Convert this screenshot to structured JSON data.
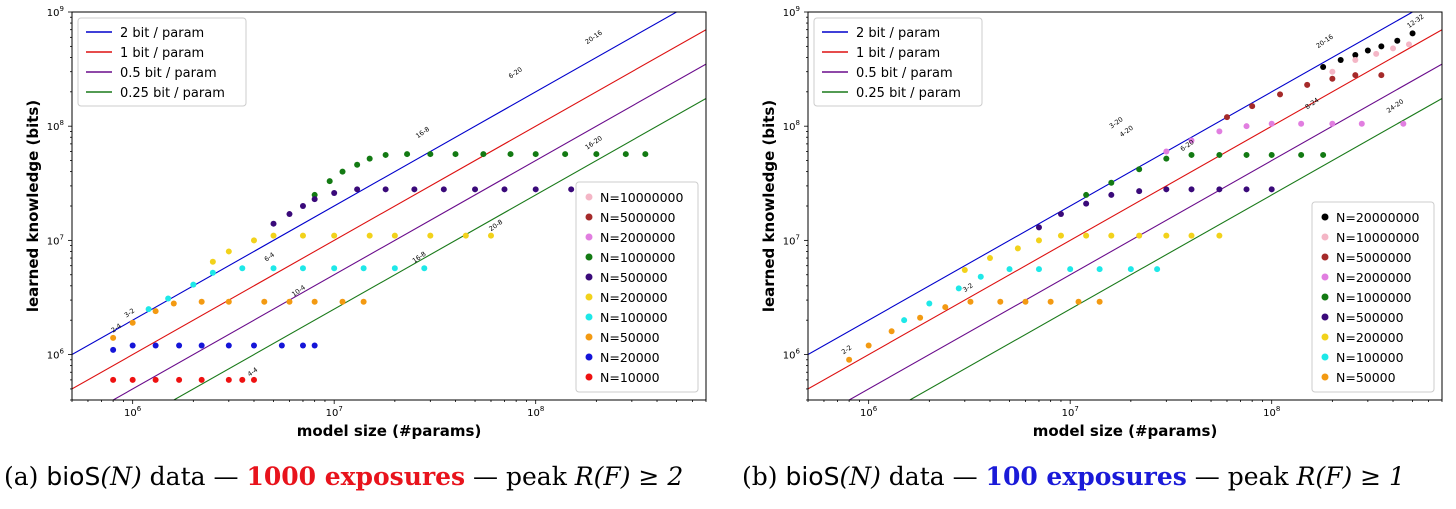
{
  "captions": [
    {
      "prefix": "(a) ",
      "name": "bioS",
      "arg": "(N)",
      "mid": " data — ",
      "highlight": "1000 exposures",
      "highlight_color": "#e8131c",
      "suffix": " — peak ",
      "peak": "R(F) ≥ 2"
    },
    {
      "prefix": "(b) ",
      "name": "bioS",
      "arg": "(N)",
      "mid": " data — ",
      "highlight": "100 exposures",
      "highlight_color": "#1a1ad8",
      "suffix": " — peak ",
      "peak": "R(F) ≥ 1"
    }
  ],
  "chart_data": [
    {
      "type": "scatter",
      "xscale": "log",
      "yscale": "log",
      "xlabel": "model size (#params)",
      "ylabel": "learned knowledge (bits)",
      "xlim": [
        500000,
        700000000
      ],
      "ylim": [
        400000,
        1000000000
      ],
      "xticks": [
        "10^6",
        "10^7",
        "10^8"
      ],
      "yticks": [
        "10^6",
        "10^7",
        "10^8",
        "10^9"
      ],
      "reference_lines": [
        {
          "name": "2 bit / param",
          "bits_per_param": 2,
          "color": "#0000cc"
        },
        {
          "name": "1 bit / param",
          "bits_per_param": 1,
          "color": "#dd1111"
        },
        {
          "name": "0.5 bit / param",
          "bits_per_param": 0.5,
          "color": "#6a0c8c"
        },
        {
          "name": "0.25 bit / param",
          "bits_per_param": 0.25,
          "color": "#1a7a1a"
        }
      ],
      "legend_lines_position": "top-left",
      "legend_series_position": "lower-right",
      "series": [
        {
          "name": "N=10000000",
          "color": "#f4b6c6",
          "points": []
        },
        {
          "name": "N=5000000",
          "color": "#a52a2a",
          "points": []
        },
        {
          "name": "N=2000000",
          "color": "#e17ee0",
          "points": []
        },
        {
          "name": "N=1000000",
          "color": "#137a13",
          "points": [
            [
              8000000,
              25000000
            ],
            [
              9500000,
              33000000
            ],
            [
              11000000,
              40000000
            ],
            [
              13000000,
              46000000
            ],
            [
              15000000,
              52000000
            ],
            [
              18000000,
              56000000
            ],
            [
              23000000,
              57000000
            ],
            [
              30000000,
              57000000
            ],
            [
              40000000,
              57000000
            ],
            [
              55000000,
              57000000
            ],
            [
              75000000,
              57000000
            ],
            [
              100000000,
              57000000
            ],
            [
              140000000,
              57000000
            ],
            [
              200000000,
              57000000
            ],
            [
              280000000,
              57000000
            ],
            [
              350000000,
              57000000
            ]
          ]
        },
        {
          "name": "N=500000",
          "color": "#3a0a7a",
          "points": [
            [
              5000000,
              14000000
            ],
            [
              6000000,
              17000000
            ],
            [
              7000000,
              20000000
            ],
            [
              8000000,
              23000000
            ],
            [
              10000000,
              26000000
            ],
            [
              13000000,
              28000000
            ],
            [
              18000000,
              28000000
            ],
            [
              25000000,
              28000000
            ],
            [
              35000000,
              28000000
            ],
            [
              50000000,
              28000000
            ],
            [
              70000000,
              28000000
            ],
            [
              100000000,
              28000000
            ],
            [
              150000000,
              28000000
            ]
          ]
        },
        {
          "name": "N=200000",
          "color": "#f2d21b",
          "points": [
            [
              2500000,
              6500000
            ],
            [
              3000000,
              8000000
            ],
            [
              4000000,
              10000000
            ],
            [
              5000000,
              11000000
            ],
            [
              7000000,
              11000000
            ],
            [
              10000000,
              11000000
            ],
            [
              15000000,
              11000000
            ],
            [
              20000000,
              11000000
            ],
            [
              30000000,
              11000000
            ],
            [
              45000000,
              11000000
            ],
            [
              60000000,
              11000000
            ]
          ]
        },
        {
          "name": "N=100000",
          "color": "#1ee8e8",
          "points": [
            [
              1200000,
              2500000
            ],
            [
              1500000,
              3100000
            ],
            [
              2000000,
              4100000
            ],
            [
              2500000,
              5200000
            ],
            [
              3500000,
              5700000
            ],
            [
              5000000,
              5700000
            ],
            [
              7000000,
              5700000
            ],
            [
              10000000,
              5700000
            ],
            [
              14000000,
              5700000
            ],
            [
              20000000,
              5700000
            ],
            [
              28000000,
              5700000
            ]
          ]
        },
        {
          "name": "N=50000",
          "color": "#f39a12",
          "points": [
            [
              800000,
              1400000
            ],
            [
              1000000,
              1900000
            ],
            [
              1300000,
              2400000
            ],
            [
              1600000,
              2800000
            ],
            [
              2200000,
              2900000
            ],
            [
              3000000,
              2900000
            ],
            [
              4500000,
              2900000
            ],
            [
              6000000,
              2900000
            ],
            [
              8000000,
              2900000
            ],
            [
              11000000,
              2900000
            ],
            [
              14000000,
              2900000
            ]
          ]
        },
        {
          "name": "N=20000",
          "color": "#1515d8",
          "points": [
            [
              800000,
              1100000
            ],
            [
              1000000,
              1200000
            ],
            [
              1300000,
              1200000
            ],
            [
              1700000,
              1200000
            ],
            [
              2200000,
              1200000
            ],
            [
              3000000,
              1200000
            ],
            [
              4000000,
              1200000
            ],
            [
              5500000,
              1200000
            ],
            [
              7000000,
              1200000
            ],
            [
              8000000,
              1200000
            ]
          ]
        },
        {
          "name": "N=10000",
          "color": "#ee1111",
          "points": [
            [
              800000,
              600000
            ],
            [
              1000000,
              600000
            ],
            [
              1300000,
              600000
            ],
            [
              1700000,
              600000
            ],
            [
              2200000,
              600000
            ],
            [
              3000000,
              600000
            ],
            [
              3500000,
              600000
            ],
            [
              4000000,
              600000
            ]
          ]
        }
      ],
      "annotations": [
        {
          "text": "20-16",
          "x": 180000000,
          "y": 520000000
        },
        {
          "text": "6-20",
          "x": 75000000,
          "y": 260000000
        },
        {
          "text": "16-8",
          "x": 26000000,
          "y": 78000000
        },
        {
          "text": "2-4",
          "x": 800000,
          "y": 1550000
        },
        {
          "text": "3-2",
          "x": 930000,
          "y": 2100000
        },
        {
          "text": "4-4",
          "x": 3800000,
          "y": 640000
        },
        {
          "text": "10-4",
          "x": 6300000,
          "y": 3200000
        },
        {
          "text": "6-4",
          "x": 4600000,
          "y": 6500000
        },
        {
          "text": "16-8",
          "x": 25000000,
          "y": 6300000
        },
        {
          "text": "20-8",
          "x": 60000000,
          "y": 12000000
        },
        {
          "text": "16-20",
          "x": 180000000,
          "y": 62000000
        }
      ]
    },
    {
      "type": "scatter",
      "xscale": "log",
      "yscale": "log",
      "xlabel": "model size (#params)",
      "ylabel": "learned knowledge (bits)",
      "xlim": [
        500000,
        700000000
      ],
      "ylim": [
        400000,
        1000000000
      ],
      "xticks": [
        "10^6",
        "10^7",
        "10^8"
      ],
      "yticks": [
        "10^6",
        "10^7",
        "10^8",
        "10^9"
      ],
      "reference_lines": [
        {
          "name": "2 bit / param",
          "bits_per_param": 2,
          "color": "#0000cc"
        },
        {
          "name": "1 bit / param",
          "bits_per_param": 1,
          "color": "#dd1111"
        },
        {
          "name": "0.5 bit / param",
          "bits_per_param": 0.5,
          "color": "#6a0c8c"
        },
        {
          "name": "0.25 bit / param",
          "bits_per_param": 0.25,
          "color": "#1a7a1a"
        }
      ],
      "legend_lines_position": "top-left",
      "legend_series_position": "lower-right",
      "series": [
        {
          "name": "N=20000000",
          "color": "#000000",
          "points": [
            [
              180000000,
              330000000
            ],
            [
              220000000,
              380000000
            ],
            [
              260000000,
              420000000
            ],
            [
              300000000,
              460000000
            ],
            [
              350000000,
              500000000
            ],
            [
              420000000,
              560000000
            ],
            [
              500000000,
              650000000
            ]
          ]
        },
        {
          "name": "N=10000000",
          "color": "#f4b6c6",
          "points": [
            [
              150000000,
              230000000
            ],
            [
              200000000,
              300000000
            ],
            [
              260000000,
              380000000
            ],
            [
              330000000,
              430000000
            ],
            [
              400000000,
              480000000
            ],
            [
              480000000,
              520000000
            ]
          ]
        },
        {
          "name": "N=5000000",
          "color": "#a52a2a",
          "points": [
            [
              60000000,
              120000000
            ],
            [
              80000000,
              150000000
            ],
            [
              110000000,
              190000000
            ],
            [
              150000000,
              230000000
            ],
            [
              200000000,
              260000000
            ],
            [
              260000000,
              280000000
            ],
            [
              350000000,
              280000000
            ]
          ]
        },
        {
          "name": "N=2000000",
          "color": "#e17ee0",
          "points": [
            [
              30000000,
              60000000
            ],
            [
              40000000,
              75000000
            ],
            [
              55000000,
              90000000
            ],
            [
              75000000,
              100000000
            ],
            [
              100000000,
              105000000
            ],
            [
              140000000,
              105000000
            ],
            [
              200000000,
              105000000
            ],
            [
              280000000,
              105000000
            ],
            [
              450000000,
              105000000
            ]
          ]
        },
        {
          "name": "N=1000000",
          "color": "#137a13",
          "points": [
            [
              12000000,
              25000000
            ],
            [
              16000000,
              32000000
            ],
            [
              22000000,
              42000000
            ],
            [
              30000000,
              52000000
            ],
            [
              40000000,
              56000000
            ],
            [
              55000000,
              56000000
            ],
            [
              75000000,
              56000000
            ],
            [
              100000000,
              56000000
            ],
            [
              140000000,
              56000000
            ],
            [
              180000000,
              56000000
            ]
          ]
        },
        {
          "name": "N=500000",
          "color": "#3a0a7a",
          "points": [
            [
              7000000,
              13000000
            ],
            [
              9000000,
              17000000
            ],
            [
              12000000,
              21000000
            ],
            [
              16000000,
              25000000
            ],
            [
              22000000,
              27000000
            ],
            [
              30000000,
              28000000
            ],
            [
              40000000,
              28000000
            ],
            [
              55000000,
              28000000
            ],
            [
              75000000,
              28000000
            ],
            [
              100000000,
              28000000
            ]
          ]
        },
        {
          "name": "N=200000",
          "color": "#f2d21b",
          "points": [
            [
              3000000,
              5500000
            ],
            [
              4000000,
              7000000
            ],
            [
              5500000,
              8500000
            ],
            [
              7000000,
              10000000
            ],
            [
              9000000,
              11000000
            ],
            [
              12000000,
              11000000
            ],
            [
              16000000,
              11000000
            ],
            [
              22000000,
              11000000
            ],
            [
              30000000,
              11000000
            ],
            [
              40000000,
              11000000
            ],
            [
              55000000,
              11000000
            ]
          ]
        },
        {
          "name": "N=100000",
          "color": "#1ee8e8",
          "points": [
            [
              1500000,
              2000000
            ],
            [
              2000000,
              2800000
            ],
            [
              2800000,
              3800000
            ],
            [
              3600000,
              4800000
            ],
            [
              5000000,
              5600000
            ],
            [
              7000000,
              5600000
            ],
            [
              10000000,
              5600000
            ],
            [
              14000000,
              5600000
            ],
            [
              20000000,
              5600000
            ],
            [
              27000000,
              5600000
            ]
          ]
        },
        {
          "name": "N=50000",
          "color": "#f39a12",
          "points": [
            [
              800000,
              900000
            ],
            [
              1000000,
              1200000
            ],
            [
              1300000,
              1600000
            ],
            [
              1800000,
              2100000
            ],
            [
              2400000,
              2600000
            ],
            [
              3200000,
              2900000
            ],
            [
              4500000,
              2900000
            ],
            [
              6000000,
              2900000
            ],
            [
              8000000,
              2900000
            ],
            [
              11000000,
              2900000
            ],
            [
              14000000,
              2900000
            ]
          ]
        }
      ],
      "annotations": [
        {
          "text": "2-2",
          "x": 750000,
          "y": 1000000
        },
        {
          "text": "12-32",
          "x": 480000000,
          "y": 720000000
        },
        {
          "text": "20-16",
          "x": 170000000,
          "y": 480000000
        },
        {
          "text": "8-24",
          "x": 150000000,
          "y": 140000000
        },
        {
          "text": "24-20",
          "x": 380000000,
          "y": 130000000
        },
        {
          "text": "3-20",
          "x": 16000000,
          "y": 95000000
        },
        {
          "text": "4-20",
          "x": 18000000,
          "y": 80000000
        },
        {
          "text": "6-20",
          "x": 36000000,
          "y": 60000000
        },
        {
          "text": "3-2",
          "x": 3000000,
          "y": 3500000
        }
      ]
    }
  ]
}
